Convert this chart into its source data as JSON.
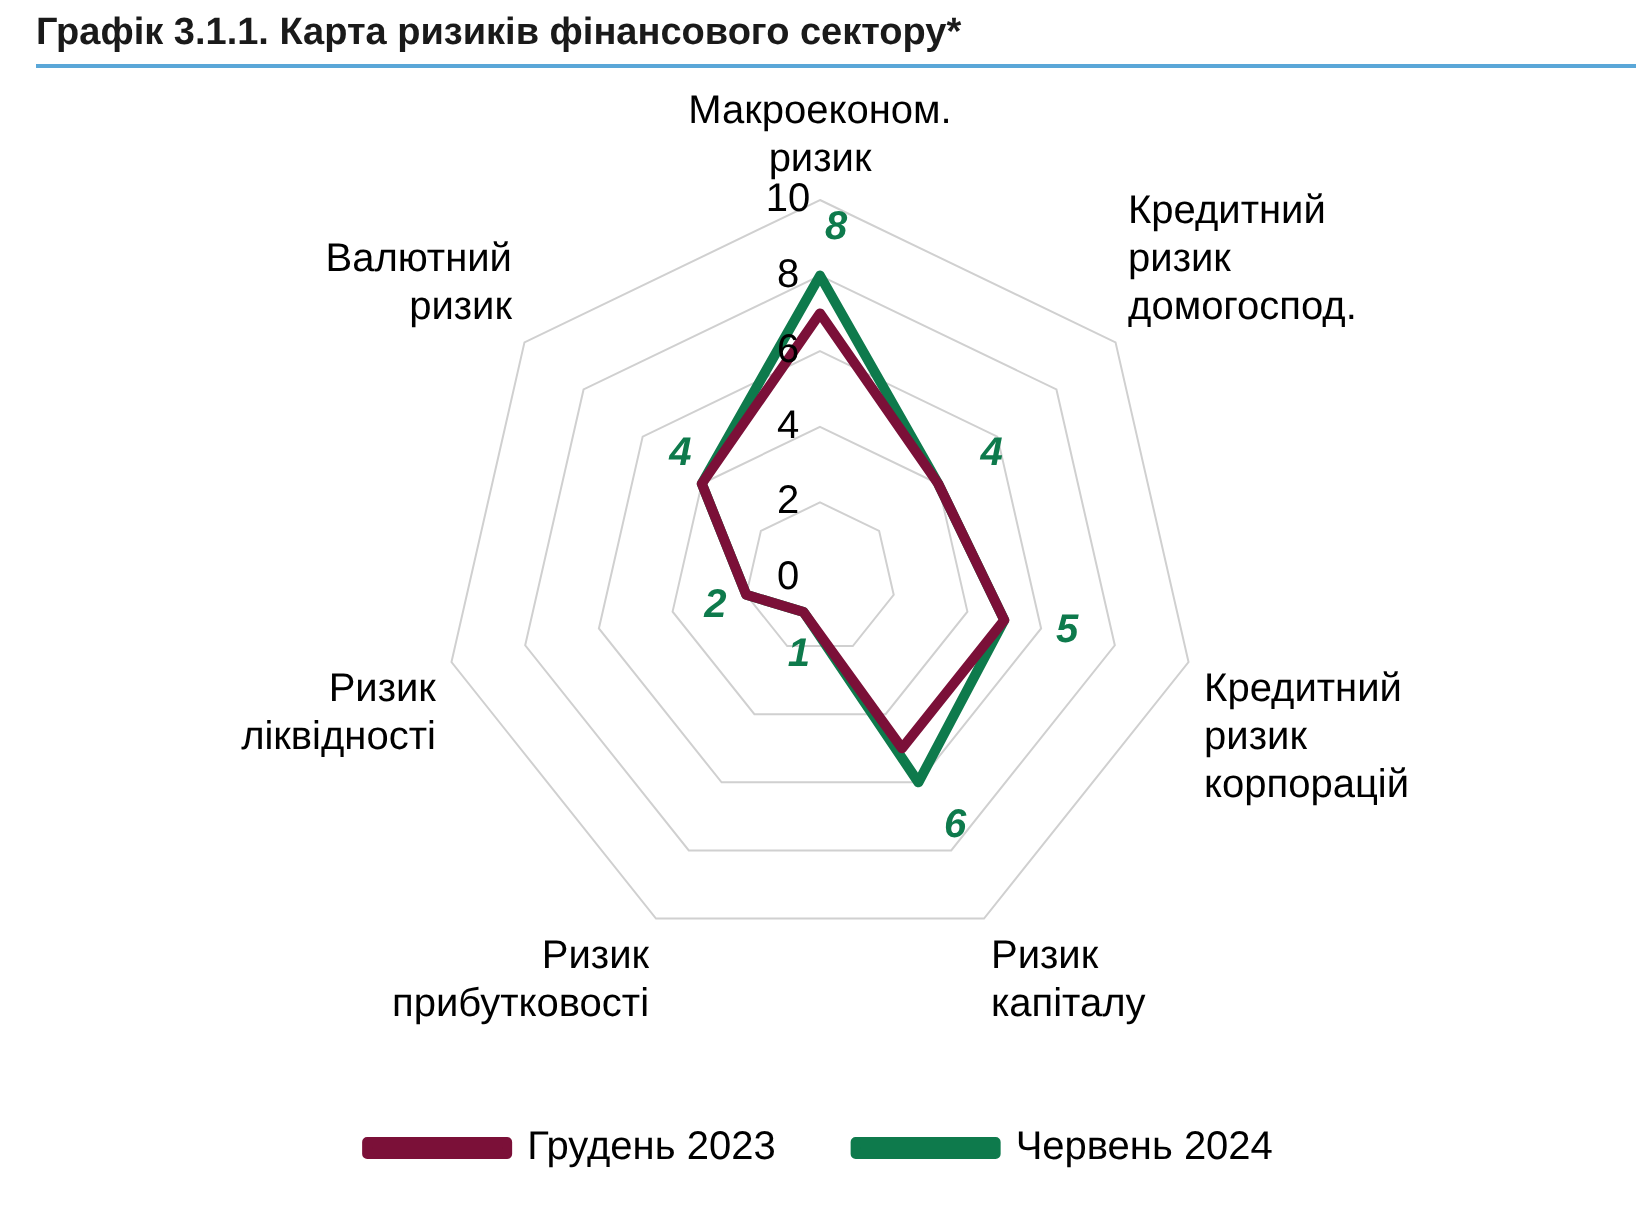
{
  "chart_data": {
    "type": "radar",
    "title": "Графік 3.1.1. Карта ризиків фінансового сектору*",
    "categories": [
      "Макроеконом. ризик",
      "Кредитний ризик домогоспод.",
      "Кредитний ризик корпорацій",
      "Ризик капіталу",
      "Ризик прибутковості",
      "Ризик ліквідності",
      "Валютний ризик"
    ],
    "series": [
      {
        "name": "Грудень 2023",
        "color": "#7b1038",
        "values": [
          7,
          4,
          5,
          5,
          1,
          2,
          4
        ]
      },
      {
        "name": "Червень 2024",
        "color": "#0e7a4c",
        "values": [
          8,
          4,
          5,
          6,
          1,
          2,
          4
        ],
        "value_labels": [
          "8",
          "4",
          "5",
          "6",
          "1",
          "2",
          "4"
        ]
      }
    ],
    "ylim": [
      0,
      10
    ],
    "yticks": [
      0,
      2,
      4,
      6,
      8,
      10
    ],
    "grid": true,
    "legend": "bottom",
    "marker": "none",
    "line_style": "solid"
  }
}
